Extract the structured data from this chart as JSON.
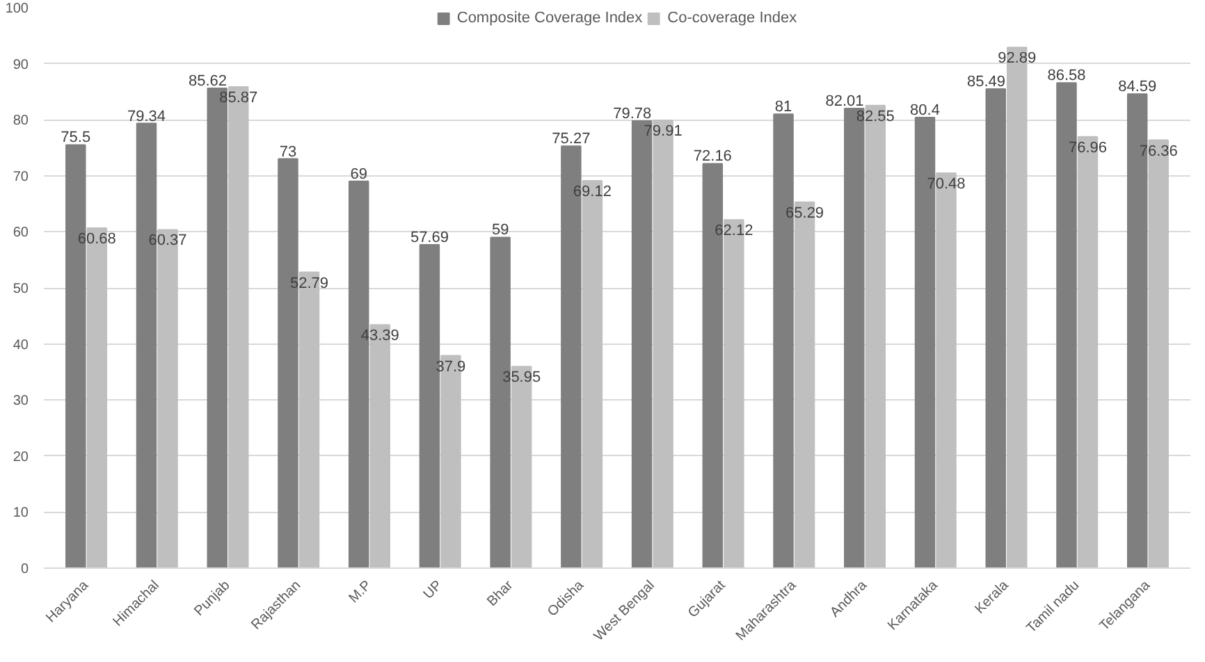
{
  "chart_data": {
    "type": "bar",
    "categories": [
      "Haryana",
      "Himachal",
      "Punjab",
      "Rajasthan",
      "M.P",
      "UP",
      "Bhar",
      "Odisha",
      "West Bengal",
      "Gujarat",
      "Maharashtra",
      "Andhra",
      "Karnataka",
      "Kerala",
      "Tamil nadu",
      "Telangana"
    ],
    "series": [
      {
        "name": "Composite Coverage Index",
        "color": "#7f7f7f",
        "values": [
          75.5,
          79.34,
          85.62,
          73,
          69,
          57.69,
          59,
          75.27,
          79.78,
          72.16,
          81,
          82.01,
          80.4,
          85.49,
          86.58,
          84.59
        ]
      },
      {
        "name": "Co-coverage Index",
        "color": "#bfbfbf",
        "values": [
          60.68,
          60.37,
          85.87,
          52.79,
          43.39,
          37.9,
          35.95,
          69.12,
          79.91,
          62.12,
          65.29,
          82.55,
          70.48,
          92.89,
          76.96,
          76.36
        ]
      }
    ],
    "ylim": [
      0,
      100
    ],
    "yticks": [
      0,
      10,
      20,
      30,
      40,
      50,
      60,
      70,
      80,
      90,
      100
    ],
    "grid": "y",
    "legend": "top",
    "data_labels": true
  }
}
